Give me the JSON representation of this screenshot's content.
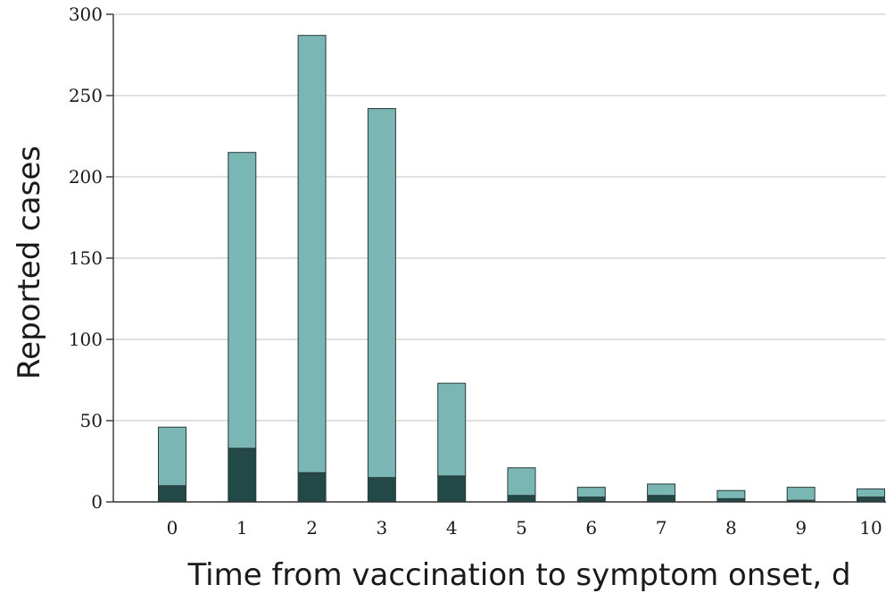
{
  "chart_data": {
    "type": "bar",
    "stacked": true,
    "categories": [
      "0",
      "1",
      "2",
      "3",
      "4",
      "5",
      "6",
      "7",
      "8",
      "9",
      "10"
    ],
    "series": [
      {
        "values": [
          10,
          33,
          18,
          15,
          16,
          4,
          3,
          4,
          2,
          1,
          3
        ],
        "color": "#234848"
      },
      {
        "values": [
          36,
          182,
          269,
          227,
          57,
          17,
          6,
          7,
          5,
          8,
          5
        ],
        "color": "#79b6b4"
      }
    ],
    "xlabel": "Time from vaccination to symptom onset, d",
    "ylabel": "Reported cases",
    "ylim": [
      0,
      300
    ],
    "yticks": [
      0,
      50,
      100,
      150,
      200,
      250,
      300
    ],
    "grid": true
  }
}
